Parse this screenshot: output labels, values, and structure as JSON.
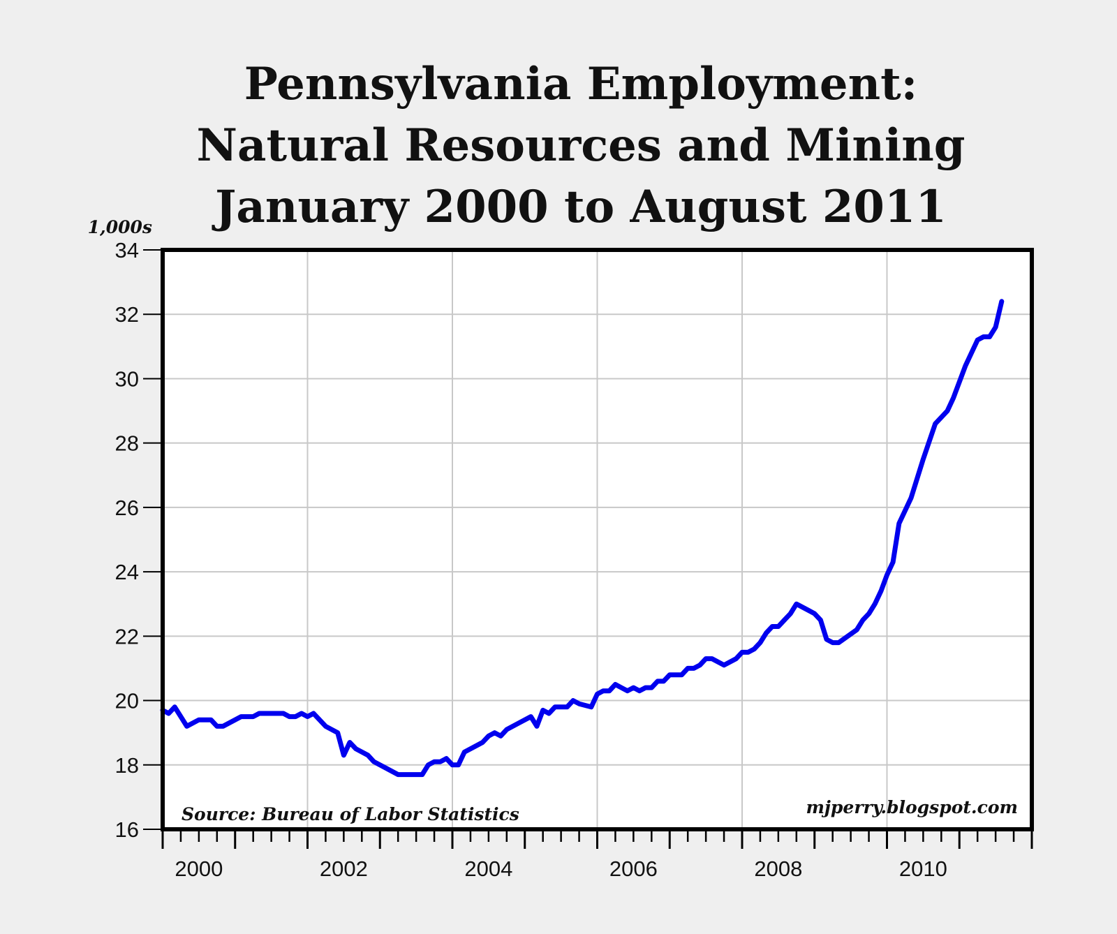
{
  "chart_data": {
    "type": "line",
    "title": [
      "Pennsylvania Employment:",
      "Natural Resources and Mining",
      "January 2000 to August 2011"
    ],
    "ylabel": "1,000s",
    "xlabel": "",
    "ylim": [
      16,
      34
    ],
    "yticks": [
      "16",
      "18",
      "20",
      "22",
      "24",
      "26",
      "28",
      "30",
      "32",
      "34"
    ],
    "xlim": [
      "2000-01",
      "2012-01"
    ],
    "xtick_labels": [
      "2000",
      "2002",
      "2004",
      "2006",
      "2008",
      "2010"
    ],
    "grid": true,
    "line_color": "#0000ee",
    "source": "Source: Bureau of Labor Statistics",
    "credit": "mjperry.blogspot.com",
    "series": [
      {
        "points": [
          [
            "2000-01",
            19.7
          ],
          [
            "2000-02",
            19.6
          ],
          [
            "2000-03",
            19.8
          ],
          [
            "2000-05",
            19.2
          ],
          [
            "2000-07",
            19.4
          ],
          [
            "2000-09",
            19.4
          ],
          [
            "2000-10",
            19.2
          ],
          [
            "2000-11",
            19.2
          ],
          [
            "2001-02",
            19.5
          ],
          [
            "2001-04",
            19.5
          ],
          [
            "2001-05",
            19.6
          ],
          [
            "2001-09",
            19.6
          ],
          [
            "2001-10",
            19.5
          ],
          [
            "2001-11",
            19.5
          ],
          [
            "2001-12",
            19.6
          ],
          [
            "2002-01",
            19.5
          ],
          [
            "2002-02",
            19.6
          ],
          [
            "2002-04",
            19.2
          ],
          [
            "2002-06",
            19.0
          ],
          [
            "2002-07",
            18.3
          ],
          [
            "2002-08",
            18.7
          ],
          [
            "2002-09",
            18.5
          ],
          [
            "2002-11",
            18.3
          ],
          [
            "2002-12",
            18.1
          ],
          [
            "2003-02",
            17.9
          ],
          [
            "2003-04",
            17.7
          ],
          [
            "2003-08",
            17.7
          ],
          [
            "2003-09",
            18.0
          ],
          [
            "2003-10",
            18.1
          ],
          [
            "2003-11",
            18.1
          ],
          [
            "2003-12",
            18.2
          ],
          [
            "2004-01",
            18.0
          ],
          [
            "2004-02",
            18.0
          ],
          [
            "2004-03",
            18.4
          ],
          [
            "2004-05",
            18.6
          ],
          [
            "2004-06",
            18.7
          ],
          [
            "2004-07",
            18.9
          ],
          [
            "2004-08",
            19.0
          ],
          [
            "2004-09",
            18.9
          ],
          [
            "2004-10",
            19.1
          ],
          [
            "2004-12",
            19.3
          ],
          [
            "2005-02",
            19.5
          ],
          [
            "2005-03",
            19.2
          ],
          [
            "2005-04",
            19.7
          ],
          [
            "2005-05",
            19.6
          ],
          [
            "2005-06",
            19.8
          ],
          [
            "2005-08",
            19.8
          ],
          [
            "2005-09",
            20.0
          ],
          [
            "2005-10",
            19.9
          ],
          [
            "2005-12",
            19.8
          ],
          [
            "2006-01",
            20.2
          ],
          [
            "2006-02",
            20.3
          ],
          [
            "2006-03",
            20.3
          ],
          [
            "2006-04",
            20.5
          ],
          [
            "2006-06",
            20.3
          ],
          [
            "2006-07",
            20.4
          ],
          [
            "2006-08",
            20.3
          ],
          [
            "2006-09",
            20.4
          ],
          [
            "2006-10",
            20.4
          ],
          [
            "2006-11",
            20.6
          ],
          [
            "2006-12",
            20.6
          ],
          [
            "2007-01",
            20.8
          ],
          [
            "2007-03",
            20.8
          ],
          [
            "2007-04",
            21.0
          ],
          [
            "2007-05",
            21.0
          ],
          [
            "2007-06",
            21.1
          ],
          [
            "2007-07",
            21.3
          ],
          [
            "2007-08",
            21.3
          ],
          [
            "2007-10",
            21.1
          ],
          [
            "2007-12",
            21.3
          ],
          [
            "2008-01",
            21.5
          ],
          [
            "2008-02",
            21.5
          ],
          [
            "2008-03",
            21.6
          ],
          [
            "2008-04",
            21.8
          ],
          [
            "2008-05",
            22.1
          ],
          [
            "2008-06",
            22.3
          ],
          [
            "2008-07",
            22.3
          ],
          [
            "2008-08",
            22.5
          ],
          [
            "2008-09",
            22.7
          ],
          [
            "2008-10",
            23.0
          ],
          [
            "2008-12",
            22.8
          ],
          [
            "2009-01",
            22.7
          ],
          [
            "2009-02",
            22.5
          ],
          [
            "2009-03",
            21.9
          ],
          [
            "2009-04",
            21.8
          ],
          [
            "2009-05",
            21.8
          ],
          [
            "2009-08",
            22.2
          ],
          [
            "2009-09",
            22.5
          ],
          [
            "2009-10",
            22.7
          ],
          [
            "2009-11",
            23.0
          ],
          [
            "2009-12",
            23.4
          ],
          [
            "2010-01",
            23.9
          ],
          [
            "2010-02",
            24.3
          ],
          [
            "2010-03",
            25.5
          ],
          [
            "2010-05",
            26.3
          ],
          [
            "2010-07",
            27.5
          ],
          [
            "2010-09",
            28.6
          ],
          [
            "2010-11",
            29.0
          ],
          [
            "2010-12",
            29.4
          ],
          [
            "2011-02",
            30.4
          ],
          [
            "2011-04",
            31.2
          ],
          [
            "2011-05",
            31.3
          ],
          [
            "2011-06",
            31.3
          ],
          [
            "2011-07",
            31.6
          ],
          [
            "2011-08",
            32.4
          ]
        ]
      }
    ]
  }
}
